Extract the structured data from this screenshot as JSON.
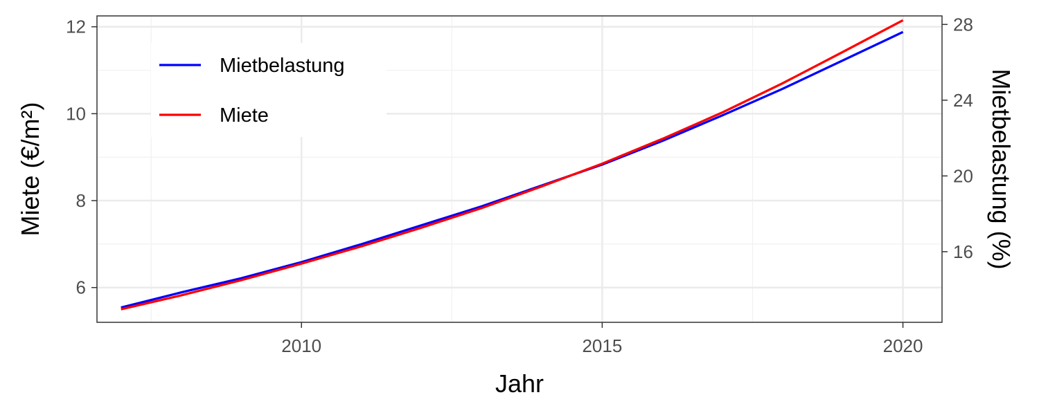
{
  "chart_data": {
    "type": "line",
    "title": "",
    "xlabel": "Jahr",
    "ylabel": "Miete (€/m²)",
    "y2label": "Mietbelastung (%)",
    "xlim": [
      2006.6,
      2020.65
    ],
    "ylim": [
      5.2,
      12.25
    ],
    "y2lim": [
      12.27,
      28.45
    ],
    "x_ticks": [
      2010,
      2015,
      2020
    ],
    "y_ticks": [
      6,
      8,
      10,
      12
    ],
    "y2_ticks": [
      16,
      20,
      24,
      28
    ],
    "grid": true,
    "legend_position": "top-left",
    "x": [
      2007,
      2008,
      2009,
      2010,
      2011,
      2012,
      2013,
      2014,
      2015,
      2016,
      2017,
      2018,
      2019,
      2020
    ],
    "series": [
      {
        "name": "Mietbelastung",
        "color": "#0000ff",
        "axis": "right",
        "values": [
          13.05,
          13.85,
          14.6,
          15.45,
          16.4,
          17.4,
          18.4,
          19.5,
          20.6,
          21.85,
          23.2,
          24.6,
          26.1,
          27.6
        ]
      },
      {
        "name": "Miete",
        "color": "#ff0000",
        "axis": "left",
        "values": [
          5.5,
          5.82,
          6.17,
          6.55,
          6.95,
          7.38,
          7.83,
          8.33,
          8.85,
          9.42,
          10.03,
          10.7,
          11.42,
          12.15
        ]
      }
    ]
  }
}
